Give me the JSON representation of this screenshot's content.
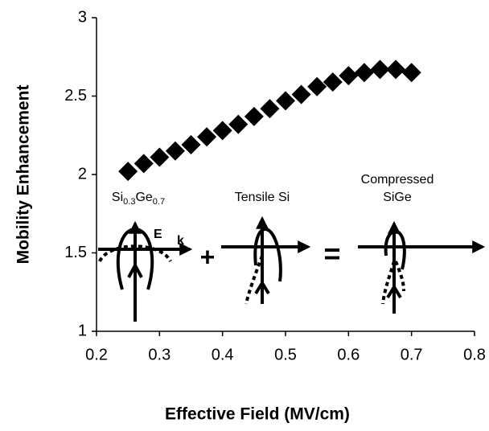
{
  "chart_data": {
    "type": "scatter",
    "x_label": "Effective Field (MV/cm)",
    "y_label": "Mobility Enhancement",
    "xlim": [
      0.2,
      0.8
    ],
    "xticks": [
      0.2,
      0.3,
      0.4,
      0.5,
      0.6,
      0.7,
      0.8
    ],
    "ylim": [
      1,
      3
    ],
    "yticks": [
      1,
      1.5,
      2,
      2.5,
      3
    ],
    "marker": "diamond",
    "series": [
      {
        "color": "#000000",
        "x": [
          0.25,
          0.275,
          0.3,
          0.325,
          0.35,
          0.375,
          0.4,
          0.425,
          0.45,
          0.475,
          0.5,
          0.525,
          0.55,
          0.575,
          0.6,
          0.625,
          0.65,
          0.675,
          0.7
        ],
        "values": [
          2.02,
          2.07,
          2.11,
          2.15,
          2.19,
          2.24,
          2.28,
          2.32,
          2.37,
          2.42,
          2.47,
          2.51,
          2.56,
          2.59,
          2.63,
          2.65,
          2.67,
          2.67,
          2.65
        ]
      }
    ],
    "annotations": {
      "sige_label": [
        "Si",
        "0.3",
        "Ge",
        "0.7"
      ],
      "e_label": "E",
      "k_label": "k",
      "plus": "+",
      "tensile_label": "Tensile Si",
      "equals": "=",
      "compressed_label": [
        "Compressed",
        "SiGe"
      ]
    }
  }
}
